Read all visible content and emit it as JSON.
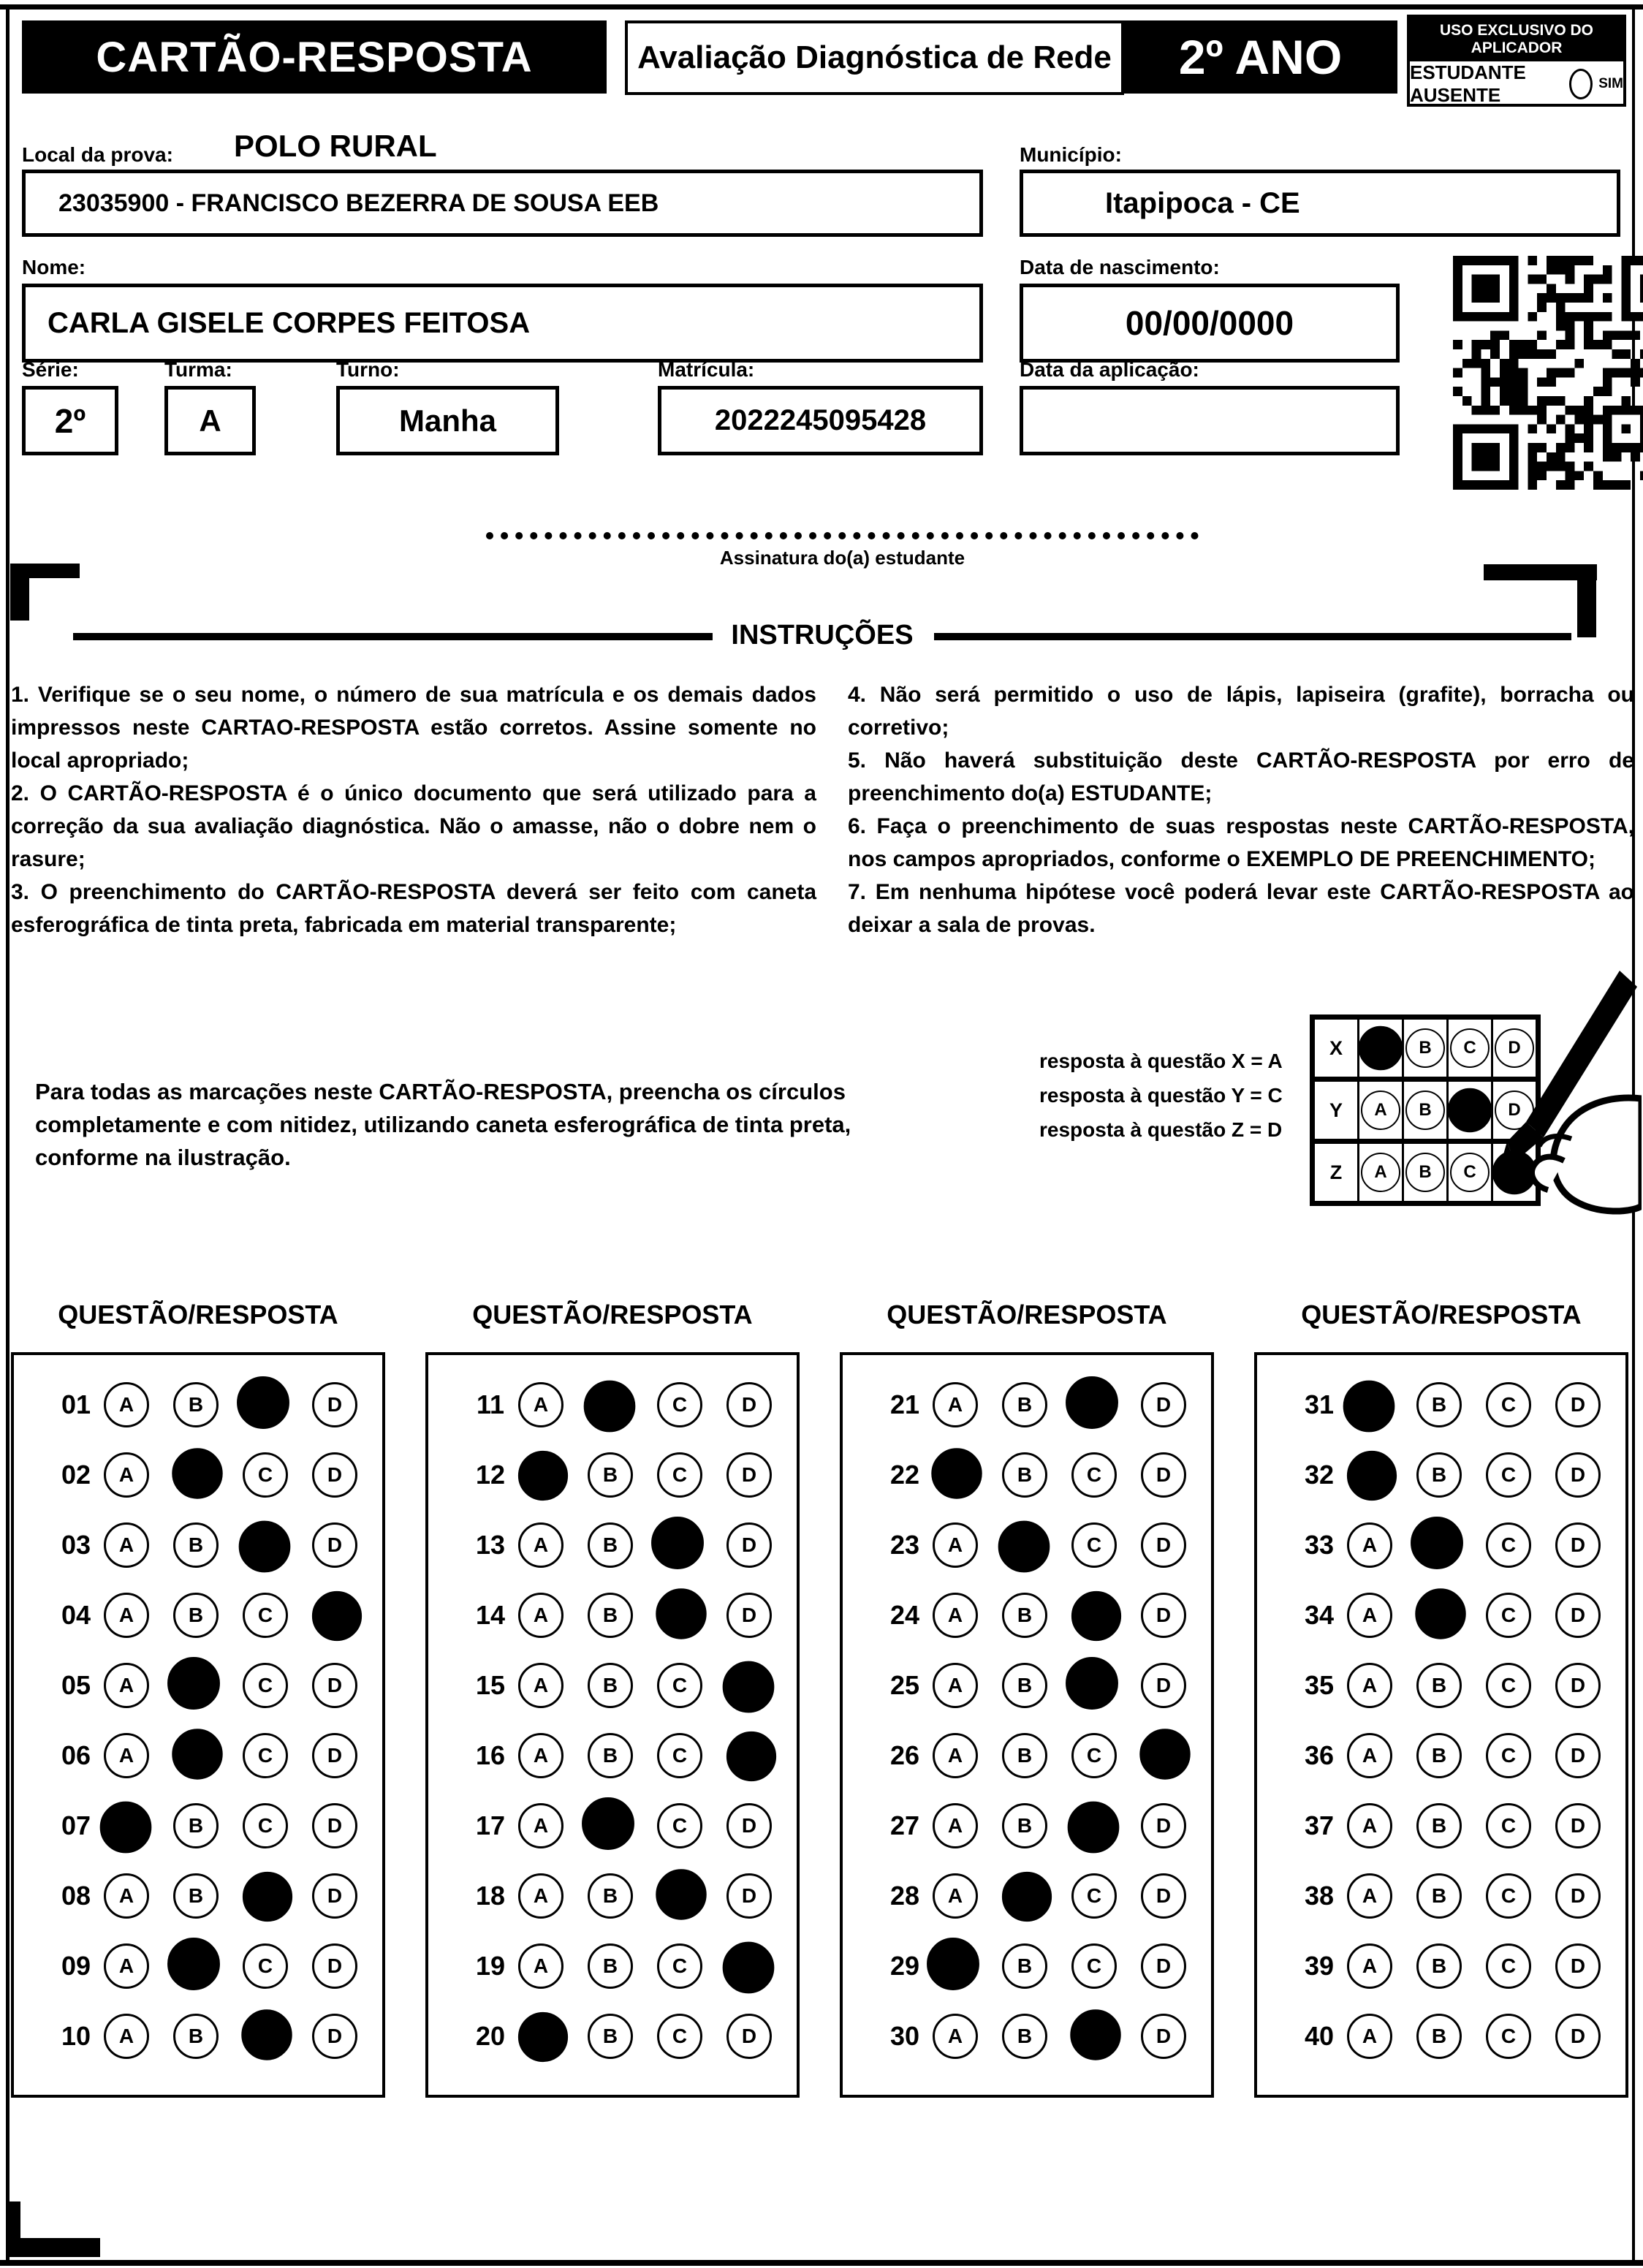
{
  "header": {
    "card_title": "CARTÃO-RESPOSTA",
    "assessment_title": "Avaliação Diagnóstica de Rede",
    "grade": "2º ANO",
    "examiner_box_title": "USO EXCLUSIVO DO APLICADOR",
    "absent_label": "ESTUDANTE AUSENTE",
    "absent_yes": "SIM"
  },
  "fields": {
    "local_label": "Local da prova:",
    "local_value": "POLO RURAL",
    "school_value": "23035900 - FRANCISCO BEZERRA DE SOUSA EEB",
    "municipio_label": "Município:",
    "municipio_value": "Itapipoca - CE",
    "nome_label": "Nome:",
    "nome_value": "CARLA GISELE CORPES FEITOSA",
    "nascimento_label": "Data de nascimento:",
    "nascimento_value": "00/00/0000",
    "serie_label": "Série:",
    "serie_value": "2º",
    "turma_label": "Turma:",
    "turma_value": "A",
    "turno_label": "Turno:",
    "turno_value": "Manha",
    "matricula_label": "Matrícula:",
    "matricula_value": "2022245095428",
    "aplicacao_label": "Data da aplicação:",
    "aplicacao_value": "",
    "signature_caption": "Assinatura do(a) estudante"
  },
  "instructions": {
    "title": "INSTRUÇÕES",
    "left": [
      "1. Verifique se o seu nome, o número de sua matrícula e os demais dados impressos neste CARTAO-RESPOSTA estão corretos. Assine somente no local apropriado;",
      "2. O CARTÃO-RESPOSTA é o único documento que será utilizado para a correção da sua avaliação diagnóstica. Não o amasse, não o dobre nem o rasure;",
      "3. O preenchimento do CARTÃO-RESPOSTA deverá ser feito com caneta esferográfica de tinta preta, fabricada em material transparente;"
    ],
    "right": [
      "4. Não será permitido o uso de lápis, lapiseira (grafite), borracha ou corretivo;",
      "5. Não haverá substituição deste CARTÃO-RESPOSTA por erro de preenchimento do(a) ESTUDANTE;",
      "6. Faça o preenchimento de suas respostas neste CARTÃO-RESPOSTA, nos campos apropriados, conforme o EXEMPLO DE PREENCHIMENTO;",
      "7. Em nenhuma hipótese você poderá levar este CARTÃO-RESPOSTA ao deixar a sala de provas."
    ]
  },
  "fill_note": "Para todas as marcações neste CARTÃO-RESPOSTA, preencha os círculos completamente e com nitidez, utilizando caneta esferográfica de tinta preta, conforme na ilustração.",
  "example": {
    "lines": [
      "resposta à questão X = A",
      "resposta à questão Y = C",
      "resposta à questão Z = D"
    ],
    "options": [
      "A",
      "B",
      "C",
      "D"
    ],
    "grid": [
      {
        "label": "X",
        "marked": "A"
      },
      {
        "label": "Y",
        "marked": "C"
      },
      {
        "label": "Z",
        "marked": "D"
      }
    ]
  },
  "answers": {
    "header": "QUESTÃO/RESPOSTA",
    "options": [
      "A",
      "B",
      "C",
      "D"
    ],
    "blocks": [
      [
        {
          "n": "01",
          "m": "C"
        },
        {
          "n": "02",
          "m": "B"
        },
        {
          "n": "03",
          "m": "C"
        },
        {
          "n": "04",
          "m": "D"
        },
        {
          "n": "05",
          "m": "B"
        },
        {
          "n": "06",
          "m": "B"
        },
        {
          "n": "07",
          "m": "A"
        },
        {
          "n": "08",
          "m": "C"
        },
        {
          "n": "09",
          "m": "B"
        },
        {
          "n": "10",
          "m": "C"
        }
      ],
      [
        {
          "n": "11",
          "m": "B"
        },
        {
          "n": "12",
          "m": "A"
        },
        {
          "n": "13",
          "m": "C"
        },
        {
          "n": "14",
          "m": "C"
        },
        {
          "n": "15",
          "m": "D"
        },
        {
          "n": "16",
          "m": "D"
        },
        {
          "n": "17",
          "m": "B"
        },
        {
          "n": "18",
          "m": "C"
        },
        {
          "n": "19",
          "m": "D"
        },
        {
          "n": "20",
          "m": "A"
        }
      ],
      [
        {
          "n": "21",
          "m": "C"
        },
        {
          "n": "22",
          "m": "A"
        },
        {
          "n": "23",
          "m": "B"
        },
        {
          "n": "24",
          "m": "C"
        },
        {
          "n": "25",
          "m": "C"
        },
        {
          "n": "26",
          "m": "D"
        },
        {
          "n": "27",
          "m": "C"
        },
        {
          "n": "28",
          "m": "B"
        },
        {
          "n": "29",
          "m": "A"
        },
        {
          "n": "30",
          "m": "C"
        }
      ],
      [
        {
          "n": "31",
          "m": "A"
        },
        {
          "n": "32",
          "m": "A"
        },
        {
          "n": "33",
          "m": "B"
        },
        {
          "n": "34",
          "m": "B"
        },
        {
          "n": "35",
          "m": ""
        },
        {
          "n": "36",
          "m": ""
        },
        {
          "n": "37",
          "m": ""
        },
        {
          "n": "38",
          "m": ""
        },
        {
          "n": "39",
          "m": ""
        },
        {
          "n": "40",
          "m": ""
        }
      ]
    ]
  }
}
